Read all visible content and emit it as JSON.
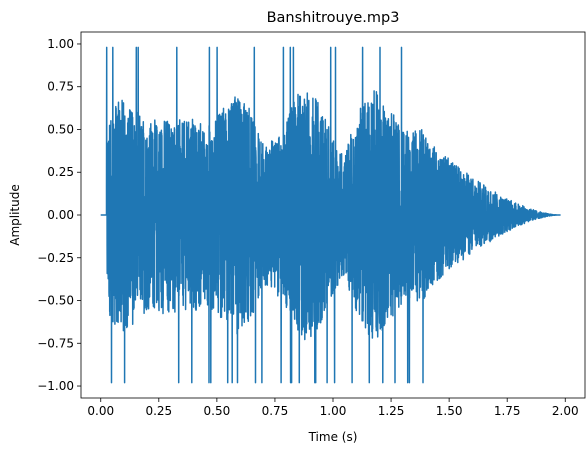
{
  "chart_data": {
    "type": "line",
    "title": "Banshitrouye.mp3",
    "xlabel": "Time (s)",
    "ylabel": "Amplitude",
    "xlim": [
      -0.085,
      2.085
    ],
    "ylim": [
      -1.07,
      1.07
    ],
    "xticks": [
      "0.00",
      "0.25",
      "0.50",
      "0.75",
      "1.00",
      "1.25",
      "1.50",
      "1.75",
      "2.00"
    ],
    "yticks": [
      "1.00",
      "0.75",
      "0.50",
      "0.25",
      "0.00",
      "−0.25",
      "−0.50",
      "−0.75",
      "−1.00"
    ],
    "grid": false,
    "series": [
      {
        "color": "#1f77b4",
        "signal": {
          "silence": [
            0.0,
            0.025
          ],
          "onset": 0.025,
          "sustain_end": 1.4,
          "decay_end": 1.97,
          "end": 1.98,
          "peak_max": 0.98,
          "peak_min": -0.98,
          "typical_envelope": 0.6
        }
      }
    ]
  }
}
